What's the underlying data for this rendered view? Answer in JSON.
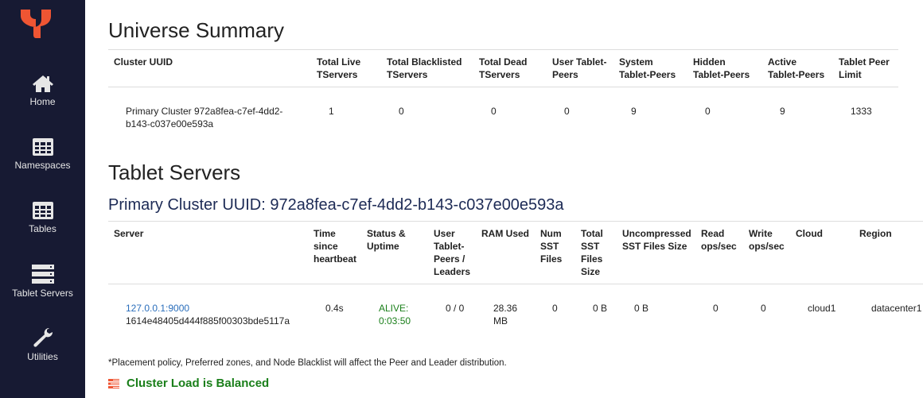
{
  "sidebar": {
    "items": [
      {
        "label": "Home",
        "icon": "home-icon"
      },
      {
        "label": "Namespaces",
        "icon": "grid-icon"
      },
      {
        "label": "Tables",
        "icon": "grid-icon"
      },
      {
        "label": "Tablet Servers",
        "icon": "server-icon"
      },
      {
        "label": "Utilities",
        "icon": "wrench-icon"
      }
    ]
  },
  "summary": {
    "title": "Universe Summary",
    "headers": [
      "Cluster UUID",
      "Total Live TServers",
      "Total Blacklisted TServers",
      "Total Dead TServers",
      "User Tablet-Peers",
      "System Tablet-Peers",
      "Hidden Tablet-Peers",
      "Active Tablet-Peers",
      "Tablet Peer Limit"
    ],
    "row": [
      "Primary Cluster 972a8fea-c7ef-4dd2-b143-c037e00e593a",
      "1",
      "0",
      "0",
      "0",
      "9",
      "0",
      "9",
      "1333"
    ]
  },
  "tservers": {
    "title": "Tablet Servers",
    "cluster_title": "Primary Cluster UUID: 972a8fea-c7ef-4dd2-b143-c037e00e593a",
    "headers": [
      "Server",
      "Time since heartbeat",
      "Status & Uptime",
      "User Tablet-Peers / Leaders",
      "RAM Used",
      "Num SST Files",
      "Total SST Files Size",
      "Uncompressed SST Files Size",
      "Read ops/sec",
      "Write ops/sec",
      "Cloud",
      "Region"
    ],
    "row": {
      "server_link": "127.0.0.1:9000",
      "server_id": "1614e48405d444f885f00303bde5117a",
      "heartbeat": "0.4s",
      "status": "ALIVE: 0:03:50",
      "peers": "0 / 0",
      "ram": "28.36 MB",
      "num_sst": "0",
      "total_sst": "0 B",
      "uncompressed_sst": "0 B",
      "read_ops": "0",
      "write_ops": "0",
      "cloud": "cloud1",
      "region": "datacenter1"
    }
  },
  "note": "*Placement policy, Preferred zones, and Node Blacklist will affect the Peer and Leader distribution.",
  "balance_status": "Cluster Load is Balanced",
  "colors": {
    "sidebar": "#171a33",
    "brand": "#ef5533",
    "alive": "#1a7f1a",
    "link": "#2a6ebb"
  }
}
